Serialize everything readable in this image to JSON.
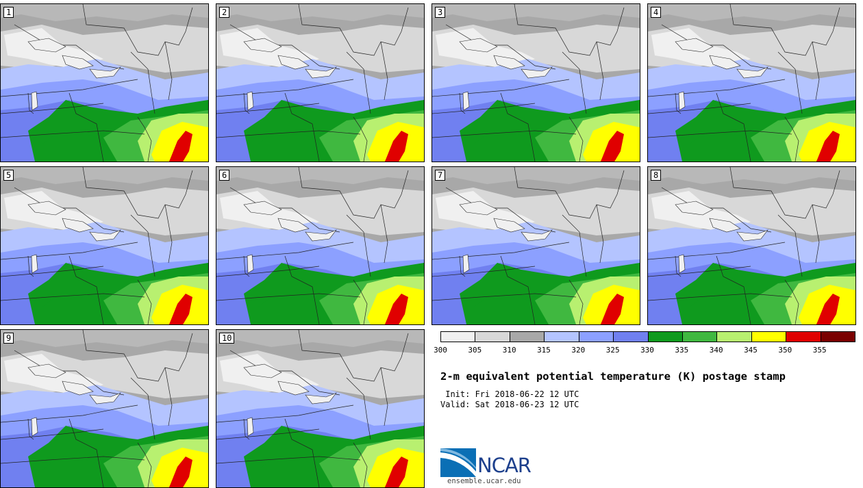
{
  "panels": [
    "1",
    "2",
    "3",
    "4",
    "5",
    "6",
    "7",
    "8",
    "9",
    "10"
  ],
  "colorbar": {
    "colors": [
      "#f0f0f0",
      "#d8d8d8",
      "#a8a8a8",
      "#b4c4ff",
      "#8ca0ff",
      "#7080f0",
      "#0f9a1e",
      "#40b840",
      "#b8f070",
      "#ffff00",
      "#e00000",
      "#7a0000"
    ],
    "ticks": [
      "300",
      "305",
      "310",
      "315",
      "320",
      "325",
      "330",
      "335",
      "340",
      "345",
      "350",
      "355"
    ]
  },
  "title": "2-m equivalent potential temperature (K) postage stamp",
  "init": " Init: Fri 2018-06-22 12 UTC",
  "valid": "Valid: Sat 2018-06-23 12 UTC",
  "logo": {
    "text": "NCAR",
    "url": "ensemble.ucar.edu"
  }
}
